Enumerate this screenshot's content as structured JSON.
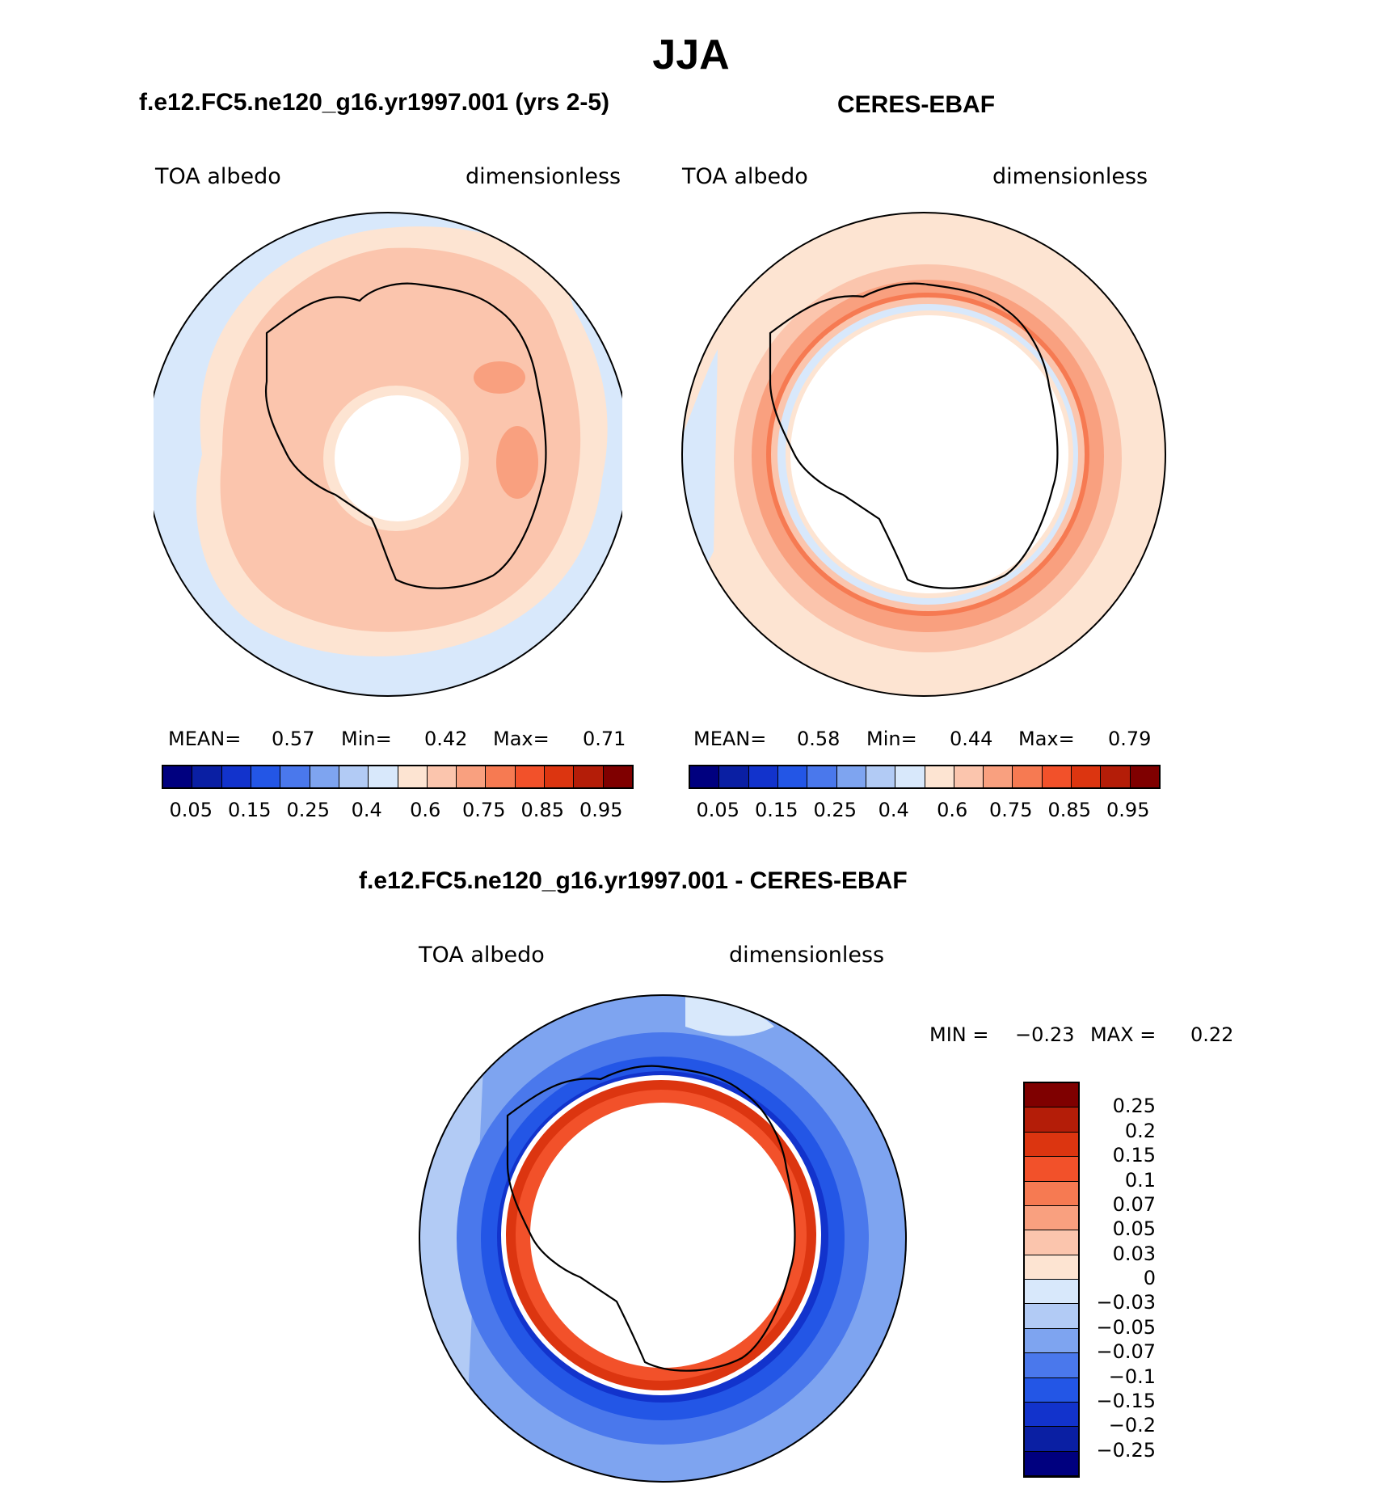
{
  "title": "JJA",
  "colors": {
    "abs_scale": [
      "#00007f",
      "#0a1fa3",
      "#1233cc",
      "#2356e6",
      "#4a78ec",
      "#7ea4f0",
      "#b2cbf5",
      "#d8e8fb",
      "#fde4d2",
      "#fbc5ad",
      "#f9a07f",
      "#f67a52",
      "#f2512a",
      "#dc3510",
      "#b41d08",
      "#7f0000"
    ],
    "diff_scale": [
      "#00007f",
      "#0a1fa3",
      "#1233cc",
      "#2356e6",
      "#4a78ec",
      "#7ea4f0",
      "#b2cbf5",
      "#d8e8fb",
      "#fde4d2",
      "#fbc5ad",
      "#f9a07f",
      "#f67a52",
      "#f2512a",
      "#dc3510",
      "#b41d08",
      "#7f0000"
    ]
  },
  "panels": [
    {
      "title": "f.e12.FC5.ne120_g16.yr1997.001 (yrs 2-5)",
      "left_label": "TOA albedo",
      "right_label": "dimensionless",
      "stats": {
        "mean_label": "MEAN=",
        "mean": "0.57",
        "min_label": "Min=",
        "min": "0.42",
        "max_label": "Max=",
        "max": "0.71"
      },
      "ticks": [
        "0.05",
        "0.15",
        "0.25",
        "0.4",
        "0.6",
        "0.75",
        "0.85",
        "0.95"
      ]
    },
    {
      "title": "CERES-EBAF",
      "left_label": "TOA albedo",
      "right_label": "dimensionless",
      "stats": {
        "mean_label": "MEAN=",
        "mean": "0.58",
        "min_label": "Min=",
        "min": "0.44",
        "max_label": "Max=",
        "max": "0.79"
      },
      "ticks": [
        "0.05",
        "0.15",
        "0.25",
        "0.4",
        "0.6",
        "0.75",
        "0.85",
        "0.95"
      ]
    }
  ],
  "diff_panel": {
    "title": "f.e12.FC5.ne120_g16.yr1997.001 - CERES-EBAF",
    "left_label": "TOA albedo",
    "right_label": "dimensionless",
    "stats": {
      "min_label": "MIN =",
      "min": "−0.23",
      "max_label": "MAX =",
      "max": "0.22"
    },
    "ticks": [
      "0.25",
      "0.2",
      "0.15",
      "0.1",
      "0.07",
      "0.05",
      "0.03",
      "0",
      "−0.03",
      "−0.05",
      "−0.07",
      "−0.1",
      "−0.15",
      "−0.2",
      "−0.25"
    ]
  }
}
